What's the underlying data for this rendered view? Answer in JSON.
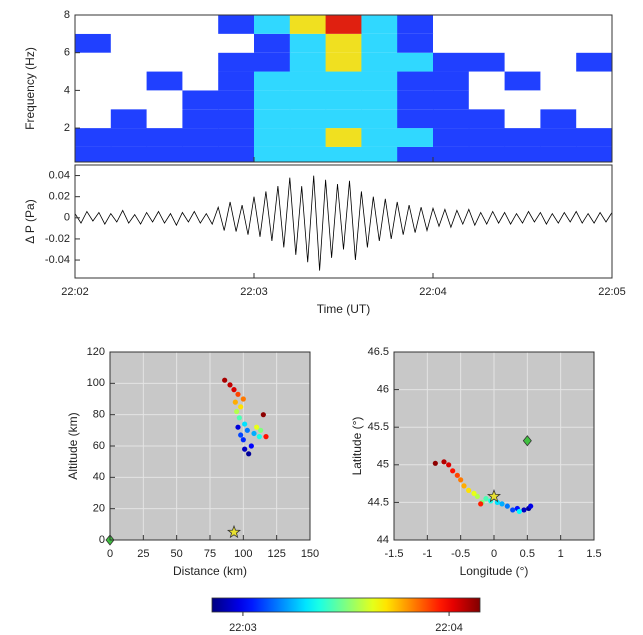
{
  "chart_data": [
    {
      "type": "heatmap",
      "ylabel": "Frequency (Hz)",
      "xlim": [
        "22:02",
        "22:05"
      ],
      "ylim": [
        0.2,
        8
      ],
      "yticks": [
        2,
        4,
        6,
        8
      ],
      "x_edges": [
        "22:02:00",
        "22:02:12",
        "22:02:24",
        "22:02:36",
        "22:02:48",
        "22:03:00",
        "22:03:12",
        "22:03:24",
        "22:03:36",
        "22:03:48",
        "22:04:00",
        "22:04:12",
        "22:04:24",
        "22:04:36",
        "22:04:48",
        "22:05:00"
      ],
      "y_edges": [
        0,
        1,
        2,
        3,
        4,
        5,
        6,
        7,
        8
      ],
      "colormap": [
        "#ffffff",
        "#2040ff",
        "#30d8ff",
        "#f0e020",
        "#e02010"
      ],
      "z": [
        [
          1,
          1,
          1,
          1,
          1,
          2,
          2,
          2,
          2,
          1,
          1,
          1,
          1,
          1,
          1
        ],
        [
          1,
          1,
          1,
          1,
          1,
          2,
          2,
          3,
          2,
          2,
          1,
          1,
          1,
          1,
          1
        ],
        [
          0,
          1,
          0,
          1,
          1,
          2,
          2,
          2,
          2,
          1,
          1,
          1,
          0,
          1,
          0
        ],
        [
          0,
          0,
          0,
          1,
          1,
          2,
          2,
          2,
          2,
          1,
          1,
          0,
          0,
          0,
          0
        ],
        [
          0,
          0,
          1,
          0,
          1,
          2,
          2,
          2,
          2,
          1,
          1,
          0,
          1,
          0,
          0
        ],
        [
          0,
          0,
          0,
          0,
          1,
          1,
          2,
          3,
          2,
          2,
          1,
          1,
          0,
          0,
          1
        ],
        [
          1,
          0,
          0,
          0,
          0,
          1,
          2,
          3,
          2,
          1,
          0,
          0,
          0,
          0,
          0
        ],
        [
          0,
          0,
          0,
          0,
          1,
          2,
          3,
          4,
          2,
          1,
          0,
          0,
          0,
          0,
          0
        ]
      ]
    },
    {
      "type": "line",
      "xlabel": "Time (UT)",
      "ylabel": "Δ P (Pa)",
      "color": "#000000",
      "xlim": [
        "22:02",
        "22:05"
      ],
      "xticks": [
        "22:02",
        "22:03",
        "22:04",
        "22:05"
      ],
      "ylim": [
        -0.057,
        0.05
      ],
      "yticks": [
        0.04,
        0.02,
        0,
        -0.02,
        -0.04
      ],
      "x": [
        "22:02:00",
        "22:02:02",
        "22:02:04",
        "22:02:06",
        "22:02:08",
        "22:02:10",
        "22:02:12",
        "22:02:14",
        "22:02:16",
        "22:02:18",
        "22:02:20",
        "22:02:22",
        "22:02:24",
        "22:02:26",
        "22:02:28",
        "22:02:30",
        "22:02:32",
        "22:02:34",
        "22:02:36",
        "22:02:38",
        "22:02:40",
        "22:02:42",
        "22:02:44",
        "22:02:46",
        "22:02:48",
        "22:02:50",
        "22:02:52",
        "22:02:54",
        "22:02:56",
        "22:02:58",
        "22:03:00",
        "22:03:02",
        "22:03:04",
        "22:03:06",
        "22:03:08",
        "22:03:10",
        "22:03:12",
        "22:03:14",
        "22:03:16",
        "22:03:18",
        "22:03:20",
        "22:03:22",
        "22:03:24",
        "22:03:26",
        "22:03:28",
        "22:03:30",
        "22:03:32",
        "22:03:34",
        "22:03:36",
        "22:03:38",
        "22:03:40",
        "22:03:42",
        "22:03:44",
        "22:03:46",
        "22:03:48",
        "22:03:50",
        "22:03:52",
        "22:03:54",
        "22:03:56",
        "22:03:58",
        "22:04:00",
        "22:04:02",
        "22:04:04",
        "22:04:06",
        "22:04:08",
        "22:04:10",
        "22:04:12",
        "22:04:14",
        "22:04:16",
        "22:04:18",
        "22:04:20",
        "22:04:22",
        "22:04:24",
        "22:04:26",
        "22:04:28",
        "22:04:30",
        "22:04:32",
        "22:04:34",
        "22:04:36",
        "22:04:38",
        "22:04:40",
        "22:04:42",
        "22:04:44",
        "22:04:46",
        "22:04:48",
        "22:04:50",
        "22:04:52",
        "22:04:54",
        "22:04:56",
        "22:04:58",
        "22:05:00"
      ],
      "values": [
        0.004,
        -0.005,
        0.006,
        -0.003,
        0.005,
        -0.006,
        0.004,
        -0.004,
        0.007,
        -0.005,
        0.003,
        -0.006,
        0.005,
        -0.004,
        0.006,
        -0.005,
        0.004,
        -0.007,
        0.005,
        -0.004,
        0.006,
        -0.005,
        0.004,
        -0.006,
        0.01,
        -0.012,
        0.015,
        -0.013,
        0.012,
        -0.016,
        0.02,
        -0.018,
        0.025,
        -0.022,
        0.03,
        -0.028,
        0.038,
        -0.035,
        0.03,
        -0.042,
        0.04,
        -0.05,
        0.036,
        -0.038,
        0.032,
        -0.03,
        0.035,
        -0.04,
        0.025,
        -0.028,
        0.02,
        -0.022,
        0.018,
        -0.02,
        0.015,
        -0.016,
        0.012,
        -0.014,
        0.01,
        -0.012,
        0.009,
        -0.008,
        0.008,
        -0.009,
        0.007,
        -0.006,
        0.008,
        -0.007,
        0.005,
        -0.006,
        0.006,
        -0.005,
        0.005,
        -0.006,
        0.004,
        -0.005,
        0.006,
        -0.004,
        0.005,
        -0.006,
        0.004,
        -0.005,
        0.005,
        -0.004,
        0.006,
        -0.005,
        0.004,
        -0.005,
        0.005,
        -0.004,
        0.005
      ]
    },
    {
      "type": "scatter",
      "xlabel": "Distance (km)",
      "ylabel": "Altitude (km)",
      "background": "#c8c8c8",
      "grid": true,
      "colormap": "jet",
      "xlim": [
        0,
        150
      ],
      "xticks": [
        0,
        25,
        50,
        75,
        100,
        125,
        150
      ],
      "ylim": [
        0,
        120
      ],
      "yticks": [
        0,
        20,
        40,
        60,
        80,
        100,
        120
      ],
      "x": [
        104,
        101,
        96,
        106,
        100,
        98,
        103,
        108,
        101,
        112,
        97,
        113,
        95,
        110,
        98,
        94,
        100,
        96,
        117,
        93,
        90,
        86,
        115
      ],
      "y": [
        55,
        58,
        72,
        60,
        64,
        67,
        70,
        68,
        74,
        66,
        78,
        70,
        82,
        72,
        85,
        88,
        90,
        93,
        66,
        96,
        99,
        102,
        80
      ],
      "c": [
        "22:02:53",
        "22:02:56",
        "22:02:58",
        "22:03:01",
        "22:03:04",
        "22:03:06",
        "22:03:10",
        "22:03:14",
        "22:03:18",
        "22:03:22",
        "22:03:26",
        "22:03:30",
        "22:03:34",
        "22:03:38",
        "22:03:42",
        "22:03:46",
        "22:03:50",
        "22:03:54",
        "22:03:58",
        "22:04:02",
        "22:04:04",
        "22:04:06",
        "22:04:08"
      ],
      "markers": [
        {
          "shape": "star",
          "x": 93,
          "y": 5,
          "color": "#e8e030"
        },
        {
          "shape": "diamond",
          "x": 0,
          "y": 0,
          "color": "#40c040"
        }
      ]
    },
    {
      "type": "scatter",
      "xlabel": "Longitude (°)",
      "ylabel": "Latitude (°)",
      "background": "#c8c8c8",
      "grid": true,
      "colormap": "jet",
      "xlim": [
        -1.5,
        1.5
      ],
      "xticks": [
        -1.5,
        -1,
        -0.5,
        0,
        0.5,
        1,
        1.5
      ],
      "ylim": [
        44,
        46.5
      ],
      "yticks": [
        44,
        44.5,
        45,
        45.5,
        46,
        46.5
      ],
      "x": [
        0.52,
        0.45,
        0.55,
        0.35,
        0.28,
        0.2,
        0.12,
        0.05,
        -0.05,
        -0.12,
        -0.18,
        -0.25,
        -0.3,
        -0.38,
        -0.45,
        -0.5,
        -0.55,
        -0.62,
        -0.68,
        -0.75,
        -0.88,
        -0.2,
        0.38
      ],
      "y": [
        44.42,
        44.4,
        44.45,
        44.42,
        44.4,
        44.45,
        44.48,
        44.5,
        44.52,
        44.55,
        44.5,
        44.58,
        44.62,
        44.66,
        44.72,
        44.8,
        44.86,
        44.92,
        45,
        45.04,
        45.02,
        44.48,
        44.38
      ],
      "c": [
        "22:02:53",
        "22:02:56",
        "22:02:59",
        "22:03:02",
        "22:03:06",
        "22:03:10",
        "22:03:14",
        "22:03:18",
        "22:03:22",
        "22:03:26",
        "22:03:30",
        "22:03:34",
        "22:03:38",
        "22:03:42",
        "22:03:46",
        "22:03:50",
        "22:03:54",
        "22:03:58",
        "22:04:02",
        "22:04:05",
        "22:04:08",
        "22:03:57",
        "22:03:20"
      ],
      "markers": [
        {
          "shape": "star",
          "x": 0,
          "y": 44.58,
          "color": "#e8e030"
        },
        {
          "shape": "diamond",
          "x": 0.5,
          "y": 45.32,
          "color": "#40c040"
        }
      ]
    },
    {
      "type": "colorbar",
      "colormap": "jet",
      "clim": [
        "22:02:51",
        "22:04:09"
      ],
      "ticks": [
        "22:03",
        "22:04"
      ]
    }
  ]
}
